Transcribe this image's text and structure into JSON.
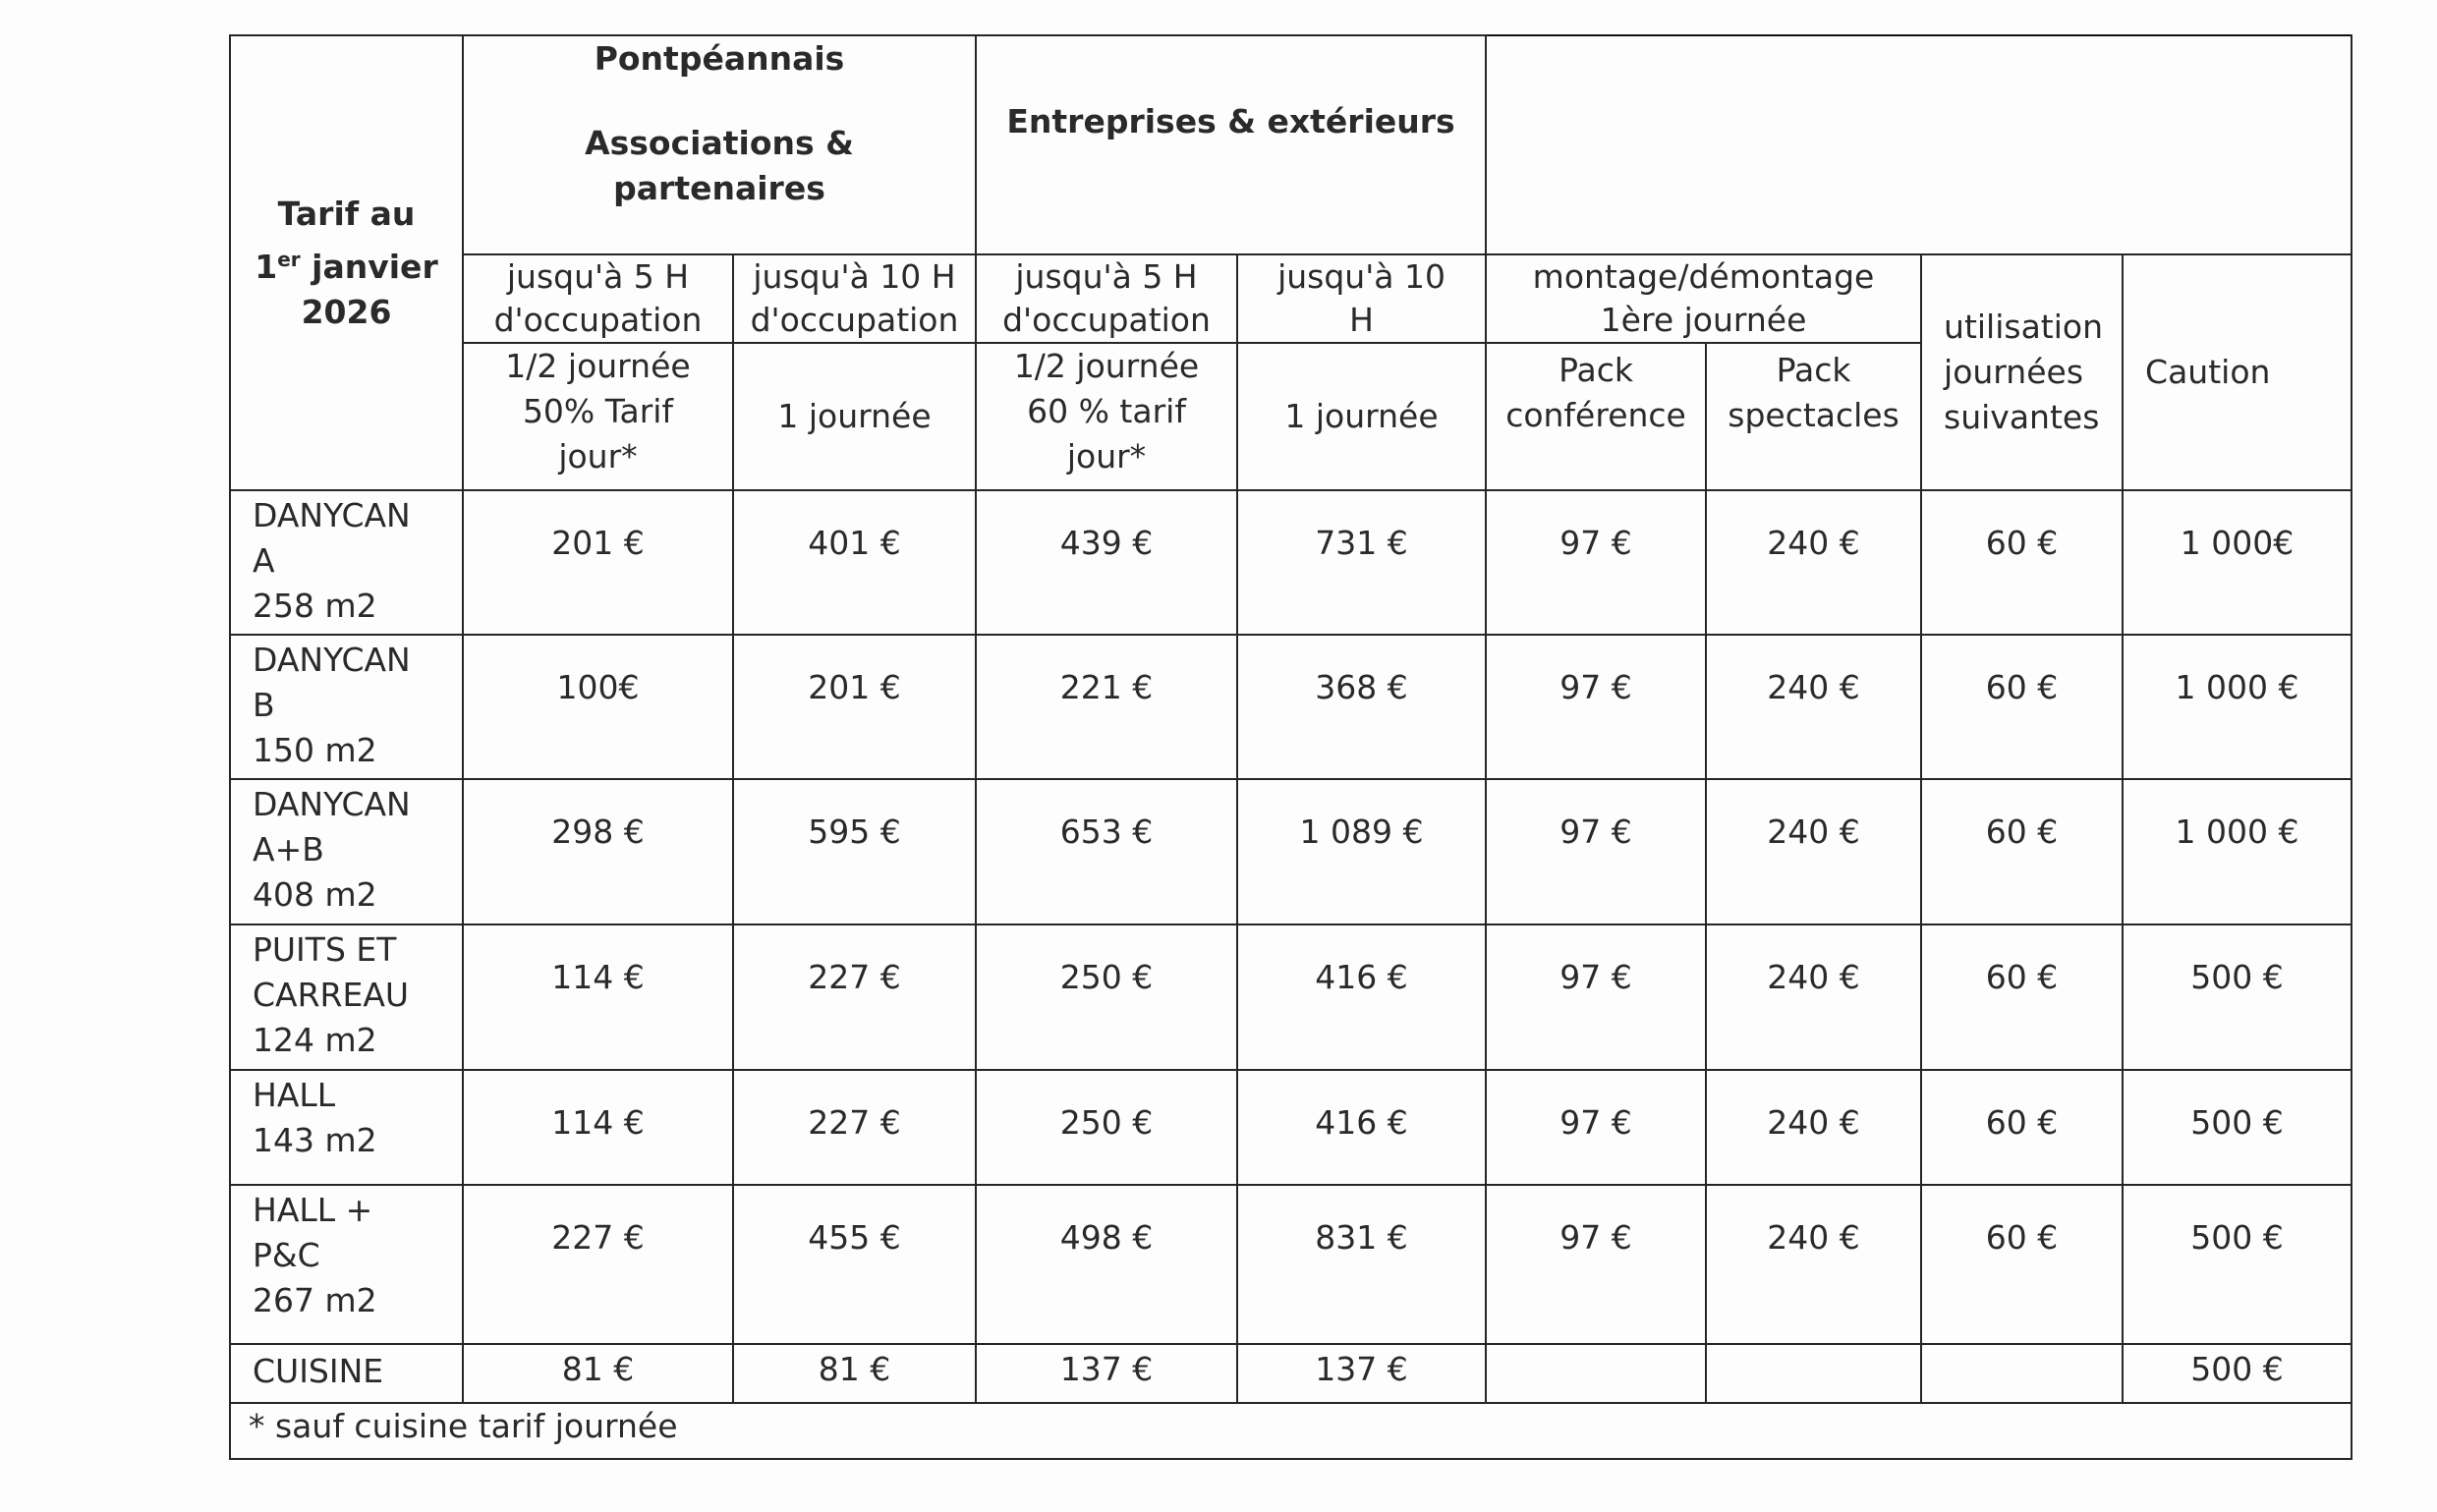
{
  "header": {
    "corner": {
      "line1": "Tarif au",
      "line2_num": "1",
      "line2_sup": "er",
      "line2_rest": " janvier",
      "line3": "2026"
    },
    "group1": {
      "line1": "Pontpéannais",
      "line2": "Associations &",
      "line3": "partenaires"
    },
    "group2": {
      "line1": "Entreprises & extérieurs"
    },
    "sub": [
      {
        "line1": "jusqu'à 5 H",
        "line2": "d'occupation"
      },
      {
        "line1": "jusqu'à 10 H",
        "line2": "d'occupation"
      },
      {
        "line1": "jusqu'à 5 H",
        "line2": "d'occupation"
      },
      {
        "line1": "jusqu'à 10",
        "line2": "H"
      }
    ],
    "montage": {
      "line1": "montage/démontage",
      "line2": "1ère journée"
    },
    "utilisation": {
      "line1": "utilisation",
      "line2": "journées",
      "line3": "suivantes"
    },
    "caution": "Caution",
    "sub2": [
      {
        "line1": "1/2 journée",
        "line2": "50% Tarif",
        "line3": "jour*"
      },
      {
        "line1": "1 journée",
        "line2": "",
        "line3": ""
      },
      {
        "line1": "1/2 journée",
        "line2": "60 % tarif",
        "line3": "jour*"
      },
      {
        "line1": "1 journée",
        "line2": "",
        "line3": ""
      },
      {
        "line1": "Pack",
        "line2": "conférence",
        "line3": ""
      },
      {
        "line1": "Pack",
        "line2": "spectacles",
        "line3": ""
      }
    ]
  },
  "rows": [
    {
      "label": [
        "DANYCAN",
        "A",
        "258 m2"
      ],
      "values": [
        "201 €",
        "401 €",
        "439 €",
        "731 €",
        "97 €",
        "240 €",
        "60 €",
        "1 000€"
      ]
    },
    {
      "label": [
        "DANYCAN",
        "B",
        "150 m2"
      ],
      "values": [
        "100€",
        "201 €",
        "221 €",
        "368 €",
        "97 €",
        "240 €",
        "60 €",
        "1 000 €"
      ]
    },
    {
      "label": [
        "DANYCAN",
        "A+B",
        "408 m2"
      ],
      "values": [
        "298 €",
        "595 €",
        "653 €",
        "1 089 €",
        "97 €",
        "240 €",
        "60 €",
        "1 000 €"
      ]
    },
    {
      "label": [
        "PUITS ET",
        "CARREAU",
        "124 m2"
      ],
      "values": [
        "114 €",
        "227 €",
        "250 €",
        "416 €",
        "97 €",
        "240 €",
        "60 €",
        "500 €"
      ]
    },
    {
      "label": [
        "HALL",
        "143 m2"
      ],
      "values": [
        "114 €",
        "227 €",
        "250 €",
        "416 €",
        "97 €",
        "240 €",
        "60 €",
        "500 €"
      ]
    },
    {
      "label": [
        "HALL +",
        "P&C",
        "267 m2"
      ],
      "values": [
        "227 €",
        "455 €",
        "498 €",
        "831 €",
        "97 €",
        "240 €",
        "60 €",
        "500 €"
      ]
    },
    {
      "label": [
        "CUISINE"
      ],
      "values": [
        "81 €",
        "81 €",
        "137 €",
        "137 €",
        "",
        "",
        "",
        "500 €"
      ]
    }
  ],
  "footnote": "* sauf cuisine tarif journée"
}
